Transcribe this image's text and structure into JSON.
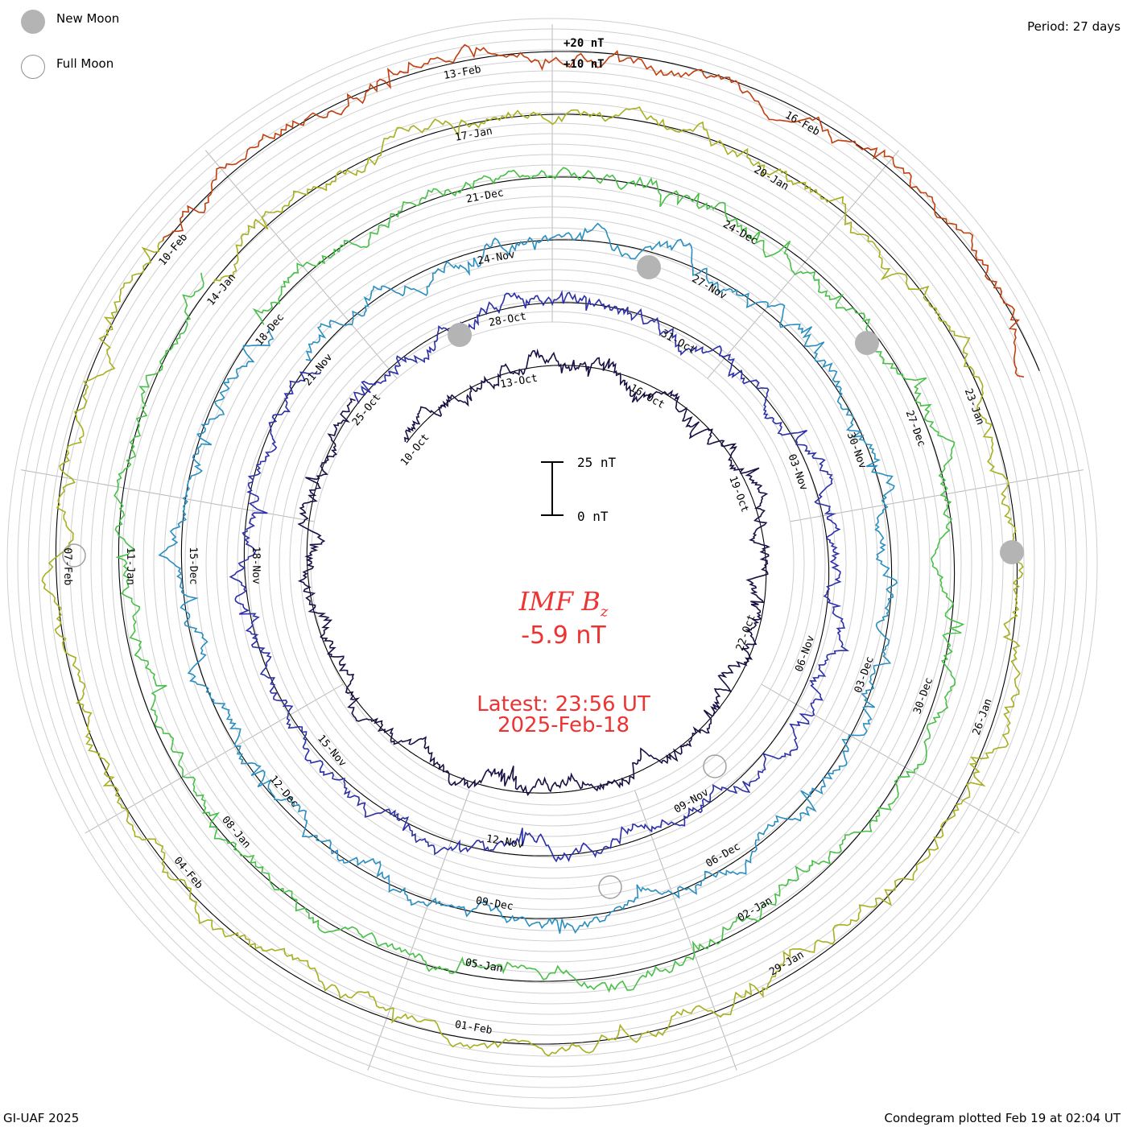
{
  "header": {
    "period_label": "Period: 27 days",
    "new_moon_label": "New Moon",
    "full_moon_label": "Full Moon"
  },
  "footer": {
    "credit": "GI-UAF 2025",
    "plotted": "Condegram plotted Feb 19 at 02:04 UT"
  },
  "center": {
    "parameter": "IMF B",
    "parameter_sub": "z",
    "value": "-5.9 nT",
    "latest": "Latest: 23:56 UT",
    "latest_date": "2025-Feb-18"
  },
  "scale_bar": {
    "top_label": "25 nT",
    "bottom_label": "0 nT"
  },
  "chart_data": {
    "type": "condegram_spiral",
    "title": "IMF Bz",
    "period_days": 27,
    "units": "nT",
    "latest_value": -5.9,
    "scale_marks": [
      {
        "label": "+20 nT",
        "value": 20
      },
      {
        "label": "+10 nT",
        "value": 10
      }
    ],
    "rotations": [
      {
        "color": "#1a0f45",
        "dates": [
          "10-Oct",
          "13-Oct",
          "16-Oct",
          "19-Oct",
          "22-Oct"
        ]
      },
      {
        "color": "#2b2fa8",
        "dates": [
          "25-Oct",
          "28-Oct",
          "31-Oct",
          "03-Nov",
          "06-Nov",
          "09-Nov",
          "12-Nov",
          "15-Nov",
          "18-Nov"
        ]
      },
      {
        "color": "#2a8fc0",
        "dates": [
          "21-Nov",
          "24-Nov",
          "27-Nov",
          "30-Nov",
          "03-Dec",
          "06-Dec",
          "09-Dec",
          "12-Dec",
          "15-Dec"
        ]
      },
      {
        "color": "#48c048",
        "dates": [
          "18-Dec",
          "21-Dec",
          "24-Dec",
          "27-Dec",
          "30-Dec",
          "02-Jan",
          "05-Jan",
          "08-Jan",
          "11-Jan"
        ]
      },
      {
        "color": "#a8b020",
        "dates": [
          "14-Jan",
          "17-Jan",
          "20-Jan",
          "23-Jan",
          "26-Jan",
          "29-Jan",
          "01-Feb",
          "04-Feb",
          "07-Feb"
        ]
      },
      {
        "color": "#c04010",
        "dates": [
          "10-Feb",
          "13-Feb",
          "16-Feb"
        ]
      }
    ]
  }
}
